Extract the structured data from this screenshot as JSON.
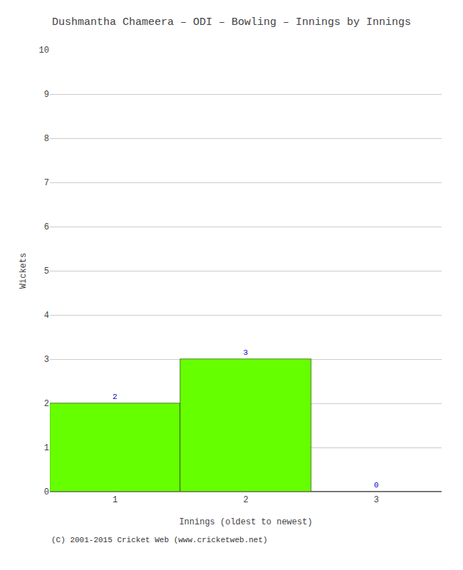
{
  "chart_data": {
    "type": "bar",
    "title": "Dushmantha Chameera – ODI – Bowling – Innings by Innings",
    "xlabel": "Innings (oldest to newest)",
    "ylabel": "Wickets",
    "categories": [
      1,
      2,
      3
    ],
    "values": [
      2,
      3,
      0
    ],
    "color": "#66ff00",
    "ylim": [
      0,
      10
    ],
    "yticks": [
      0,
      1,
      2,
      3,
      4,
      5,
      6,
      7,
      8,
      9,
      10
    ],
    "grid": true,
    "data_labels": true,
    "annotations": [
      "(C) 2001-2015 Cricket Web (www.cricketweb.net)"
    ]
  }
}
